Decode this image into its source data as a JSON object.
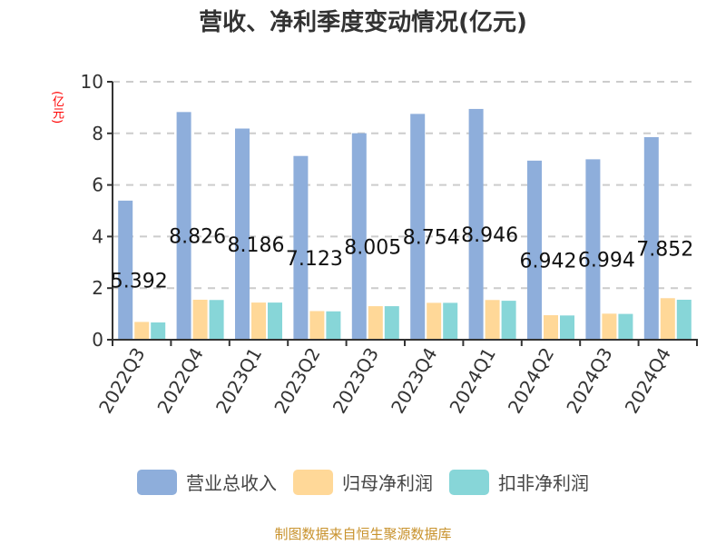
{
  "title": "营收、净利季度变动情况(亿元)",
  "y_unit_label": "(亿元)",
  "footer": "制图数据来自恒生聚源数据库",
  "legend": [
    {
      "name": "营业总收入",
      "color": "#8eaedb"
    },
    {
      "name": "归母净利润",
      "color": "#ffd898"
    },
    {
      "name": "扣非净利润",
      "color": "#87d6d8"
    }
  ],
  "chart_data": {
    "type": "bar",
    "title": "营收、净利季度变动情况(亿元)",
    "xlabel": "",
    "ylabel": "(亿元)",
    "ylim": [
      0,
      10
    ],
    "yticks": [
      0,
      2,
      4,
      6,
      8,
      10
    ],
    "grid": "horizontal dashed",
    "legend_position": "bottom",
    "categories": [
      "2022Q3",
      "2022Q4",
      "2023Q1",
      "2023Q2",
      "2023Q3",
      "2023Q4",
      "2024Q1",
      "2024Q2",
      "2024Q3",
      "2024Q4"
    ],
    "series": [
      {
        "name": "营业总收入",
        "color": "#8eaedb",
        "values": [
          5.392,
          8.826,
          8.186,
          7.123,
          8.005,
          8.754,
          8.946,
          6.942,
          6.994,
          7.852
        ],
        "data_labels": [
          "5.392",
          "8.826",
          "8.186",
          "7.123",
          "8.005",
          "8.754",
          "8.946",
          "6.942",
          "6.994",
          "7.852"
        ]
      },
      {
        "name": "归母净利润",
        "color": "#ffd898",
        "values": [
          0.69,
          1.55,
          1.44,
          1.11,
          1.3,
          1.43,
          1.54,
          0.95,
          1.01,
          1.61
        ]
      },
      {
        "name": "扣非净利润",
        "color": "#87d6d8",
        "values": [
          0.67,
          1.54,
          1.44,
          1.1,
          1.3,
          1.43,
          1.51,
          0.94,
          1.0,
          1.55
        ]
      }
    ]
  }
}
